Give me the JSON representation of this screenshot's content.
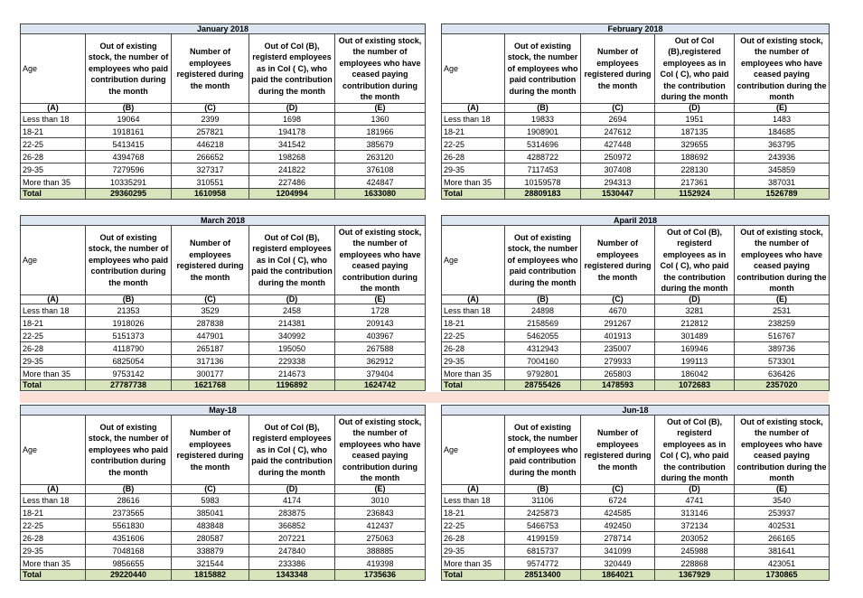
{
  "tables": [
    {
      "title": "January 2018",
      "headers": [
        "Age",
        "Out of existing stock, the number of employees who paid contribution during the month",
        "Number of employees registered during the month",
        "Out of Col (B), registerd employees as in Col ( C), who paid the contribution during the month",
        "Out of existing stock, the number of employees who have ceased paying contribution during the month"
      ],
      "letters": [
        "(A)",
        "(B)",
        "(C)",
        "(D)",
        "(E)"
      ],
      "rows": [
        [
          "Less than 18",
          19064,
          2399,
          1698,
          1360
        ],
        [
          "18-21",
          1918161,
          257821,
          194178,
          181966
        ],
        [
          "22-25",
          5413415,
          446218,
          341542,
          385679
        ],
        [
          "26-28",
          4394768,
          266652,
          198268,
          263120
        ],
        [
          "29-35",
          7279596,
          327317,
          241822,
          376108
        ],
        [
          "More than 35",
          10335291,
          310551,
          227486,
          424847
        ]
      ],
      "total": [
        "Total",
        29360295,
        1610958,
        1204994,
        1633080
      ]
    },
    {
      "title": "February 2018",
      "headers": [
        "Age",
        "Out of existing stock, the number of employees who paid contribution during the month",
        "Number of employees registered during the month",
        "Out of Col (B),registered employees as in Col ( C), who paid the contribution during the month",
        "Out of existing stock, the number of employees who have ceased paying contribution during the month"
      ],
      "letters": [
        "(A)",
        "(B)",
        "(C)",
        "(D)",
        "(E)"
      ],
      "rows": [
        [
          "Less than 18",
          19833,
          2694,
          1951,
          1483
        ],
        [
          "18-21",
          1908901,
          247612,
          187135,
          184685
        ],
        [
          "22-25",
          5314696,
          427448,
          329655,
          363795
        ],
        [
          "26-28",
          4288722,
          250972,
          188692,
          243936
        ],
        [
          "29-35",
          7117453,
          307408,
          228130,
          345859
        ],
        [
          "More than 35",
          10159578,
          294313,
          217361,
          387031
        ]
      ],
      "total": [
        "Total",
        28809183,
        1530447,
        1152924,
        1526789
      ]
    },
    {
      "title": "March 2018",
      "headers": [
        "Age",
        "Out of existing stock, the number of employees who paid contribution during the month",
        "Number of employees registered during the month",
        "Out of Col (B), registerd employees as in Col ( C), who paid the contribution during the month",
        "Out of existing stock, the number of employees who have ceased paying contribution during the month"
      ],
      "letters": [
        "(A)",
        "(B)",
        "(C)",
        "(D)",
        "(E)"
      ],
      "rows": [
        [
          "Less than 18",
          21353,
          3529,
          2458,
          1728
        ],
        [
          "18-21",
          1918026,
          287838,
          214381,
          209143
        ],
        [
          "22-25",
          5151373,
          447901,
          340992,
          403967
        ],
        [
          "26-28",
          4118790,
          265187,
          195050,
          267588
        ],
        [
          "29-35",
          6825054,
          317136,
          229338,
          362912
        ],
        [
          "More than 35",
          9753142,
          300177,
          214673,
          379404
        ]
      ],
      "total": [
        "Total",
        27787738,
        1621768,
        1196892,
        1624742
      ]
    },
    {
      "title": "Aparil 2018",
      "headers": [
        "Age",
        "Out of existing stock, the number of employees who paid contribution during the month",
        "Number of employees registered during the month",
        "Out of Col (B), registerd employees as in Col ( C), who paid the contribution during the month",
        "Out of existing stock, the number of employees who have ceased paying contribution during the month"
      ],
      "letters": [
        "(A)",
        "(B)",
        "(C)",
        "(D)",
        "(E)"
      ],
      "rows": [
        [
          "Less than 18",
          24898,
          4670,
          3281,
          2531
        ],
        [
          "18-21",
          2158569,
          291267,
          212812,
          238259
        ],
        [
          "22-25",
          5462055,
          401913,
          301489,
          516767
        ],
        [
          "26-28",
          4312943,
          235007,
          169946,
          389736
        ],
        [
          "29-35",
          7004160,
          279933,
          199113,
          573301
        ],
        [
          "More than 35",
          9792801,
          265803,
          186042,
          636426
        ]
      ],
      "total": [
        "Total",
        28755426,
        1478593,
        1072683,
        2357020
      ]
    },
    {
      "title": "May-18",
      "headers": [
        "Age",
        "Out of existing stock, the number of employees who paid contribution during the month",
        "Number of employees registered during the month",
        "Out of Col (B), registerd employees as in Col ( C), who paid the contribution during the month",
        "Out of existing stock, the number of employees who have ceased paying contribution during the month"
      ],
      "letters": [
        "(A)",
        "(B)",
        "(C)",
        "(D)",
        "(E)"
      ],
      "rows": [
        [
          "Less than 18",
          28616,
          5983,
          4174,
          3010
        ],
        [
          "18-21",
          2373565,
          385041,
          283875,
          236843
        ],
        [
          "22-25",
          5561830,
          483848,
          366852,
          412437
        ],
        [
          "26-28",
          4351606,
          280587,
          207221,
          275063
        ],
        [
          "29-35",
          7048168,
          338879,
          247840,
          388885
        ],
        [
          "More than 35",
          9856655,
          321544,
          233386,
          419398
        ]
      ],
      "total": [
        "Total",
        29220440,
        1815882,
        1343348,
        1735636
      ]
    },
    {
      "title": "Jun-18",
      "headers": [
        "Age",
        "Out of existing stock, the number of employees who paid contribution during the month",
        "Number of employees registered during the month",
        "Out of Col (B), registerd employees as in Col ( C), who paid the contribution during the month",
        "Out of existing stock, the number of employees who have ceased paying contribution during the month"
      ],
      "letters": [
        "(A)",
        "(B)",
        "(C)",
        "(D)",
        "(E)"
      ],
      "rows": [
        [
          "Less than 18",
          31106,
          6724,
          4741,
          3540
        ],
        [
          "18-21",
          2425873,
          424585,
          313146,
          253937
        ],
        [
          "22-25",
          5466753,
          492450,
          372134,
          402531
        ],
        [
          "26-28",
          4199159,
          278714,
          203052,
          266165
        ],
        [
          "29-35",
          6815737,
          341099,
          245988,
          381641
        ],
        [
          "More than 35",
          9574772,
          320449,
          228868,
          423051
        ]
      ],
      "total": [
        "Total",
        28513400,
        1864021,
        1367929,
        1730865
      ]
    }
  ]
}
